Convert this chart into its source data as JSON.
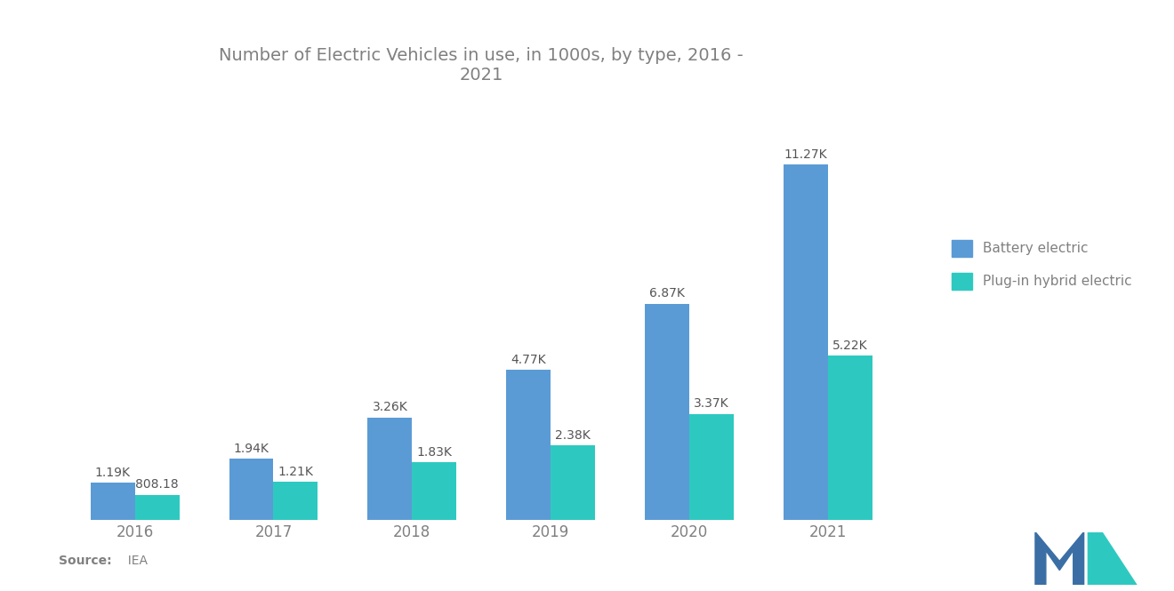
{
  "title": "Number of Electric Vehicles in use, in 1000s, by type, 2016 -\n2021",
  "years": [
    "2016",
    "2017",
    "2018",
    "2019",
    "2020",
    "2021"
  ],
  "battery_electric": [
    1190,
    1940,
    3260,
    4770,
    6870,
    11270
  ],
  "plugin_hybrid": [
    808.18,
    1210,
    1830,
    2380,
    3370,
    5220
  ],
  "battery_labels": [
    "1.19K",
    "1.94K",
    "3.26K",
    "4.77K",
    "6.87K",
    "11.27K"
  ],
  "hybrid_labels": [
    "808.18",
    "1.21K",
    "1.83K",
    "2.38K",
    "3.37K",
    "5.22K"
  ],
  "battery_color": "#5B9BD5",
  "hybrid_color": "#2DC9C0",
  "background_color": "#FFFFFF",
  "title_color": "#808080",
  "label_color": "#555555",
  "source_bold": "Source:",
  "source_normal": "  IEA",
  "legend_battery": "Battery electric",
  "legend_hybrid": "Plug-in hybrid electric",
  "bar_width": 0.32,
  "ylim": [
    0,
    13500
  ],
  "title_fontsize": 14,
  "label_fontsize": 10,
  "tick_fontsize": 12,
  "source_fontsize": 10
}
